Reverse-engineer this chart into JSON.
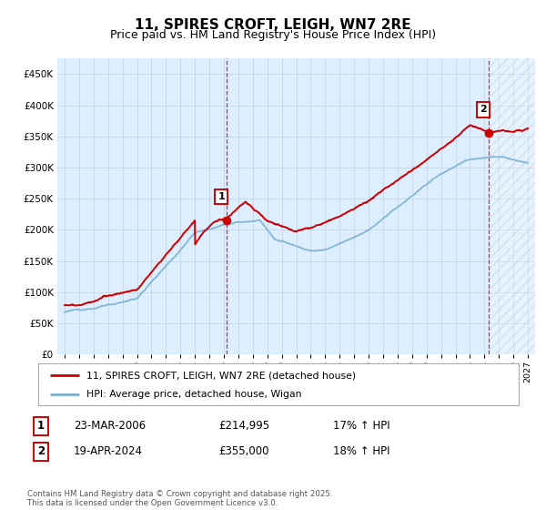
{
  "title": "11, SPIRES CROFT, LEIGH, WN7 2RE",
  "subtitle": "Price paid vs. HM Land Registry's House Price Index (HPI)",
  "legend_label_red": "11, SPIRES CROFT, LEIGH, WN7 2RE (detached house)",
  "legend_label_blue": "HPI: Average price, detached house, Wigan",
  "footnote": "Contains HM Land Registry data © Crown copyright and database right 2025.\nThis data is licensed under the Open Government Licence v3.0.",
  "sale1_date": "23-MAR-2006",
  "sale1_price": "£214,995",
  "sale1_hpi": "17% ↑ HPI",
  "sale2_date": "19-APR-2024",
  "sale2_price": "£355,000",
  "sale2_hpi": "18% ↑ HPI",
  "ylim": [
    0,
    475000
  ],
  "yticks": [
    0,
    50000,
    100000,
    150000,
    200000,
    250000,
    300000,
    350000,
    400000,
    450000
  ],
  "color_red": "#cc0000",
  "color_blue": "#7ab0d4",
  "color_grid": "#c8daea",
  "background_plot": "#ddeeff",
  "background_fig": "#ffffff",
  "sale1_year": 2006.22,
  "sale2_year": 2024.3,
  "sale1_price_val": 214995,
  "sale2_price_val": 355000,
  "xmin": 1995,
  "xmax": 2027
}
